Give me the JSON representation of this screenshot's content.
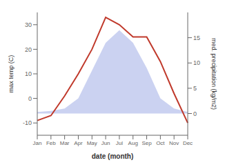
{
  "chart_data": {
    "type": "line",
    "categories": [
      "Jan",
      "Feb",
      "Mar",
      "Apr",
      "May",
      "Jun",
      "Jul",
      "Aug",
      "Sep",
      "Oct",
      "Nov",
      "Dec"
    ],
    "series": [
      {
        "type": "area",
        "axis": "y2",
        "color": "#c5cdf0",
        "values": [
          0.3,
          0.5,
          1.0,
          3.0,
          8.5,
          14.0,
          16.5,
          14.0,
          9.0,
          3.0,
          1.0,
          0.3
        ]
      },
      {
        "type": "line",
        "color": "#c0392b",
        "values": [
          -9,
          -7,
          1,
          10,
          20,
          33,
          30,
          25,
          25,
          15,
          2,
          -10
        ]
      }
    ],
    "xlabel": "date (month)",
    "ylabel": "max temp (C)",
    "y2label": "med. precipitation (kg/m2)",
    "ylim": [
      -15,
      35
    ],
    "yticks": [
      -10,
      0,
      10,
      20,
      30
    ],
    "y2lim": [
      -4.3,
      20
    ],
    "y2ticks": [
      0,
      5,
      10,
      15
    ],
    "grid": false
  }
}
